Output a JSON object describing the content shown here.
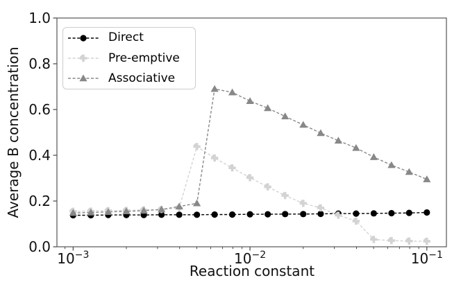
{
  "chart_data": {
    "type": "line",
    "xlabel": "Reaction constant",
    "ylabel": "Average B concentration",
    "x_scale": "log",
    "xlim": [
      0.00081,
      0.129
    ],
    "ylim": [
      0.0,
      1.0
    ],
    "grid": false,
    "legend_position": "upper left",
    "x": [
      0.001,
      0.00126,
      0.00158,
      0.002,
      0.00251,
      0.00316,
      0.00398,
      0.00501,
      0.00631,
      0.00794,
      0.01,
      0.0126,
      0.0158,
      0.02,
      0.0251,
      0.0316,
      0.0398,
      0.0501,
      0.0631,
      0.0794,
      0.1
    ],
    "series": [
      {
        "name": "Direct",
        "color": "#000000",
        "marker": "circle",
        "linestyle": "dashed",
        "values": [
          0.138,
          0.138,
          0.139,
          0.139,
          0.139,
          0.14,
          0.14,
          0.14,
          0.141,
          0.141,
          0.142,
          0.142,
          0.143,
          0.143,
          0.144,
          0.145,
          0.145,
          0.146,
          0.147,
          0.148,
          0.15
        ]
      },
      {
        "name": "Pre-emptive",
        "color": "#d3d3d3",
        "marker": "plus",
        "linestyle": "dashed",
        "values": [
          0.155,
          0.156,
          0.158,
          0.159,
          0.161,
          0.163,
          0.17,
          0.438,
          0.388,
          0.345,
          0.302,
          0.262,
          0.224,
          0.19,
          0.17,
          0.138,
          0.112,
          0.032,
          0.027,
          0.025,
          0.024
        ]
      },
      {
        "name": "Associative",
        "color": "#888888",
        "marker": "triangle",
        "linestyle": "dashed",
        "values": [
          0.148,
          0.15,
          0.152,
          0.155,
          0.158,
          0.163,
          0.176,
          0.19,
          0.69,
          0.675,
          0.637,
          0.606,
          0.57,
          0.533,
          0.497,
          0.464,
          0.432,
          0.392,
          0.357,
          0.327,
          0.295
        ]
      }
    ],
    "y_ticks": {
      "values": [
        0.0,
        0.2,
        0.4,
        0.6,
        0.8,
        1.0
      ],
      "labels": [
        "0.0",
        "0.2",
        "0.4",
        "0.6",
        "0.8",
        "1.0"
      ]
    },
    "x_ticks": {
      "values": [
        0.001,
        0.01,
        0.1
      ],
      "labels": [
        [
          "10",
          "−3"
        ],
        [
          "10",
          "−2"
        ],
        [
          "10",
          "−1"
        ]
      ]
    },
    "colors": {
      "spine": "#555555",
      "tick": "#333333",
      "text": "#111111",
      "legend_border": "#cccccc"
    }
  }
}
